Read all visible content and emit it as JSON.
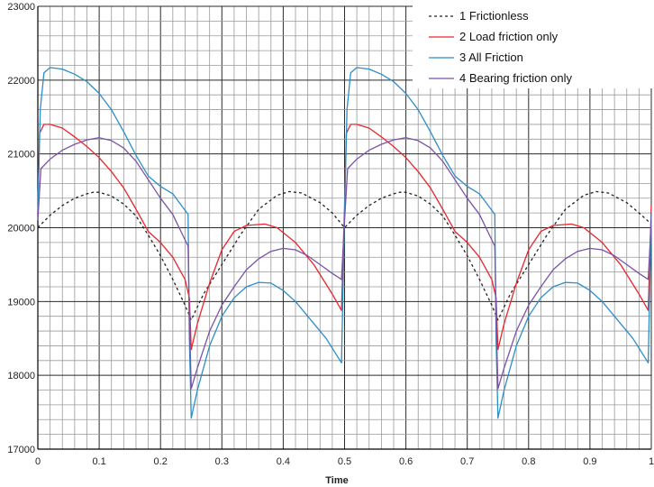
{
  "chart_data": {
    "type": "line",
    "title": "",
    "xlabel": "Time",
    "ylabel": "",
    "xlim": [
      0,
      1
    ],
    "ylim": [
      17000,
      23000
    ],
    "x_ticks": [
      "0",
      "0.1",
      "0.2",
      "0.3",
      "0.4",
      "0.5",
      "0.6",
      "0.7",
      "0.8",
      "0.9",
      "1"
    ],
    "y_ticks": [
      "17000",
      "18000",
      "19000",
      "20000",
      "21000",
      "22000",
      "23000"
    ],
    "grid": true,
    "legend_position": "top-right",
    "series": [
      {
        "name": "1 Frictionless",
        "color": "#222222",
        "dash": true,
        "points": [
          [
            0,
            20000
          ],
          [
            0.02,
            20170
          ],
          [
            0.04,
            20300
          ],
          [
            0.06,
            20400
          ],
          [
            0.08,
            20460
          ],
          [
            0.09,
            20480
          ],
          [
            0.1,
            20480
          ],
          [
            0.12,
            20430
          ],
          [
            0.14,
            20320
          ],
          [
            0.16,
            20160
          ],
          [
            0.18,
            19900
          ],
          [
            0.2,
            19620
          ],
          [
            0.22,
            19300
          ],
          [
            0.24,
            18950
          ],
          [
            0.25,
            18750
          ],
          [
            0.27,
            19100
          ],
          [
            0.3,
            19500
          ],
          [
            0.33,
            19900
          ],
          [
            0.36,
            20250
          ],
          [
            0.39,
            20440
          ],
          [
            0.41,
            20490
          ],
          [
            0.43,
            20470
          ],
          [
            0.46,
            20340
          ],
          [
            0.48,
            20200
          ],
          [
            0.5,
            20000
          ],
          [
            0.52,
            20170
          ],
          [
            0.54,
            20300
          ],
          [
            0.56,
            20400
          ],
          [
            0.58,
            20460
          ],
          [
            0.59,
            20480
          ],
          [
            0.6,
            20480
          ],
          [
            0.62,
            20430
          ],
          [
            0.64,
            20320
          ],
          [
            0.66,
            20160
          ],
          [
            0.68,
            19900
          ],
          [
            0.7,
            19620
          ],
          [
            0.72,
            19300
          ],
          [
            0.74,
            18950
          ],
          [
            0.75,
            18750
          ],
          [
            0.77,
            19100
          ],
          [
            0.8,
            19500
          ],
          [
            0.83,
            19900
          ],
          [
            0.86,
            20250
          ],
          [
            0.89,
            20440
          ],
          [
            0.91,
            20490
          ],
          [
            0.93,
            20470
          ],
          [
            0.96,
            20340
          ],
          [
            0.98,
            20200
          ],
          [
            1,
            20050
          ]
        ]
      },
      {
        "name": "2 Load friction only",
        "color": "#e8262c",
        "dash": false,
        "points": [
          [
            0,
            20300
          ],
          [
            0.003,
            21280
          ],
          [
            0.01,
            21400
          ],
          [
            0.02,
            21400
          ],
          [
            0.04,
            21350
          ],
          [
            0.06,
            21230
          ],
          [
            0.08,
            21100
          ],
          [
            0.1,
            20950
          ],
          [
            0.12,
            20760
          ],
          [
            0.14,
            20540
          ],
          [
            0.16,
            20250
          ],
          [
            0.18,
            19950
          ],
          [
            0.2,
            19800
          ],
          [
            0.22,
            19600
          ],
          [
            0.24,
            19300
          ],
          [
            0.247,
            19050
          ],
          [
            0.25,
            18350
          ],
          [
            0.26,
            18700
          ],
          [
            0.28,
            19250
          ],
          [
            0.3,
            19700
          ],
          [
            0.32,
            19950
          ],
          [
            0.34,
            20030
          ],
          [
            0.37,
            20050
          ],
          [
            0.39,
            20000
          ],
          [
            0.42,
            19800
          ],
          [
            0.45,
            19500
          ],
          [
            0.48,
            19100
          ],
          [
            0.495,
            18880
          ],
          [
            0.5,
            20300
          ],
          [
            0.503,
            21280
          ],
          [
            0.51,
            21400
          ],
          [
            0.52,
            21400
          ],
          [
            0.54,
            21350
          ],
          [
            0.56,
            21230
          ],
          [
            0.58,
            21100
          ],
          [
            0.6,
            20950
          ],
          [
            0.62,
            20760
          ],
          [
            0.64,
            20540
          ],
          [
            0.66,
            20250
          ],
          [
            0.68,
            19950
          ],
          [
            0.7,
            19800
          ],
          [
            0.72,
            19600
          ],
          [
            0.74,
            19300
          ],
          [
            0.747,
            19050
          ],
          [
            0.75,
            18350
          ],
          [
            0.76,
            18700
          ],
          [
            0.78,
            19250
          ],
          [
            0.8,
            19700
          ],
          [
            0.82,
            19950
          ],
          [
            0.84,
            20030
          ],
          [
            0.87,
            20050
          ],
          [
            0.89,
            20000
          ],
          [
            0.92,
            19800
          ],
          [
            0.95,
            19500
          ],
          [
            0.98,
            19100
          ],
          [
            0.995,
            18880
          ],
          [
            1,
            20300
          ]
        ]
      },
      {
        "name": "3 All Friction",
        "color": "#2b8ec9",
        "dash": false,
        "points": [
          [
            0,
            20200
          ],
          [
            0.004,
            21600
          ],
          [
            0.01,
            22100
          ],
          [
            0.02,
            22170
          ],
          [
            0.04,
            22150
          ],
          [
            0.06,
            22080
          ],
          [
            0.08,
            21980
          ],
          [
            0.1,
            21820
          ],
          [
            0.12,
            21600
          ],
          [
            0.14,
            21300
          ],
          [
            0.16,
            20980
          ],
          [
            0.18,
            20700
          ],
          [
            0.2,
            20560
          ],
          [
            0.22,
            20460
          ],
          [
            0.245,
            20180
          ],
          [
            0.247,
            18500
          ],
          [
            0.25,
            17420
          ],
          [
            0.26,
            17800
          ],
          [
            0.28,
            18400
          ],
          [
            0.3,
            18800
          ],
          [
            0.32,
            19050
          ],
          [
            0.34,
            19200
          ],
          [
            0.36,
            19260
          ],
          [
            0.38,
            19250
          ],
          [
            0.4,
            19150
          ],
          [
            0.42,
            19000
          ],
          [
            0.44,
            18800
          ],
          [
            0.47,
            18500
          ],
          [
            0.495,
            18170
          ],
          [
            0.5,
            20200
          ],
          [
            0.504,
            21600
          ],
          [
            0.51,
            22100
          ],
          [
            0.52,
            22170
          ],
          [
            0.54,
            22150
          ],
          [
            0.56,
            22080
          ],
          [
            0.58,
            21980
          ],
          [
            0.6,
            21820
          ],
          [
            0.62,
            21600
          ],
          [
            0.64,
            21300
          ],
          [
            0.66,
            20980
          ],
          [
            0.68,
            20700
          ],
          [
            0.7,
            20560
          ],
          [
            0.72,
            20460
          ],
          [
            0.745,
            20180
          ],
          [
            0.747,
            18500
          ],
          [
            0.75,
            17420
          ],
          [
            0.76,
            17800
          ],
          [
            0.78,
            18400
          ],
          [
            0.8,
            18800
          ],
          [
            0.82,
            19050
          ],
          [
            0.84,
            19200
          ],
          [
            0.86,
            19260
          ],
          [
            0.88,
            19250
          ],
          [
            0.9,
            19150
          ],
          [
            0.92,
            19000
          ],
          [
            0.94,
            18800
          ],
          [
            0.97,
            18500
          ],
          [
            0.995,
            18170
          ],
          [
            1,
            20200
          ]
        ]
      },
      {
        "name": "4 Bearing friction only",
        "color": "#7a52a8",
        "dash": false,
        "points": [
          [
            0,
            20100
          ],
          [
            0.005,
            20800
          ],
          [
            0.02,
            20930
          ],
          [
            0.04,
            21050
          ],
          [
            0.06,
            21130
          ],
          [
            0.08,
            21190
          ],
          [
            0.1,
            21220
          ],
          [
            0.12,
            21180
          ],
          [
            0.14,
            21080
          ],
          [
            0.16,
            20900
          ],
          [
            0.18,
            20650
          ],
          [
            0.2,
            20400
          ],
          [
            0.22,
            20180
          ],
          [
            0.245,
            19750
          ],
          [
            0.247,
            18800
          ],
          [
            0.25,
            17820
          ],
          [
            0.26,
            18100
          ],
          [
            0.28,
            18600
          ],
          [
            0.3,
            18950
          ],
          [
            0.32,
            19200
          ],
          [
            0.34,
            19430
          ],
          [
            0.36,
            19580
          ],
          [
            0.38,
            19680
          ],
          [
            0.4,
            19720
          ],
          [
            0.42,
            19700
          ],
          [
            0.44,
            19620
          ],
          [
            0.46,
            19500
          ],
          [
            0.48,
            19380
          ],
          [
            0.495,
            19300
          ],
          [
            0.5,
            20100
          ],
          [
            0.505,
            20800
          ],
          [
            0.52,
            20930
          ],
          [
            0.54,
            21050
          ],
          [
            0.56,
            21130
          ],
          [
            0.58,
            21190
          ],
          [
            0.6,
            21220
          ],
          [
            0.62,
            21180
          ],
          [
            0.64,
            21080
          ],
          [
            0.66,
            20900
          ],
          [
            0.68,
            20650
          ],
          [
            0.7,
            20400
          ],
          [
            0.72,
            20180
          ],
          [
            0.745,
            19750
          ],
          [
            0.747,
            18800
          ],
          [
            0.75,
            17820
          ],
          [
            0.76,
            18100
          ],
          [
            0.78,
            18600
          ],
          [
            0.8,
            18950
          ],
          [
            0.82,
            19200
          ],
          [
            0.84,
            19430
          ],
          [
            0.86,
            19580
          ],
          [
            0.88,
            19680
          ],
          [
            0.9,
            19720
          ],
          [
            0.92,
            19700
          ],
          [
            0.94,
            19620
          ],
          [
            0.96,
            19500
          ],
          [
            0.98,
            19380
          ],
          [
            0.995,
            19300
          ],
          [
            1,
            20100
          ]
        ]
      }
    ]
  }
}
